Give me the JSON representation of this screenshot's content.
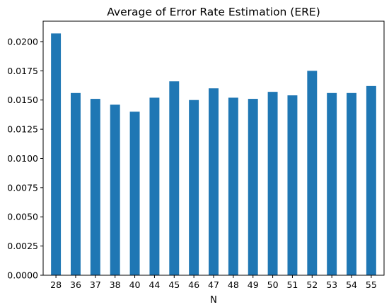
{
  "chart_data": {
    "type": "bar",
    "title": "Average of Error Rate Estimation (ERE)",
    "xlabel": "N",
    "ylabel": "",
    "categories": [
      "28",
      "36",
      "37",
      "38",
      "40",
      "44",
      "45",
      "46",
      "47",
      "48",
      "49",
      "50",
      "51",
      "52",
      "53",
      "54",
      "55"
    ],
    "values": [
      0.0207,
      0.0156,
      0.0151,
      0.0146,
      0.014,
      0.0152,
      0.0166,
      0.015,
      0.016,
      0.0152,
      0.0151,
      0.0157,
      0.0154,
      0.0175,
      0.0156,
      0.0156,
      0.0162
    ],
    "ylim": [
      0,
      0.02175
    ],
    "yticks": [
      0.0,
      0.0025,
      0.005,
      0.0075,
      0.01,
      0.0125,
      0.015,
      0.0175,
      0.02
    ],
    "ytick_labels": [
      "0.0000",
      "0.0025",
      "0.0050",
      "0.0075",
      "0.0100",
      "0.0125",
      "0.0150",
      "0.0175",
      "0.0200"
    ],
    "grid": false,
    "bar_color": "#1f77b4"
  }
}
